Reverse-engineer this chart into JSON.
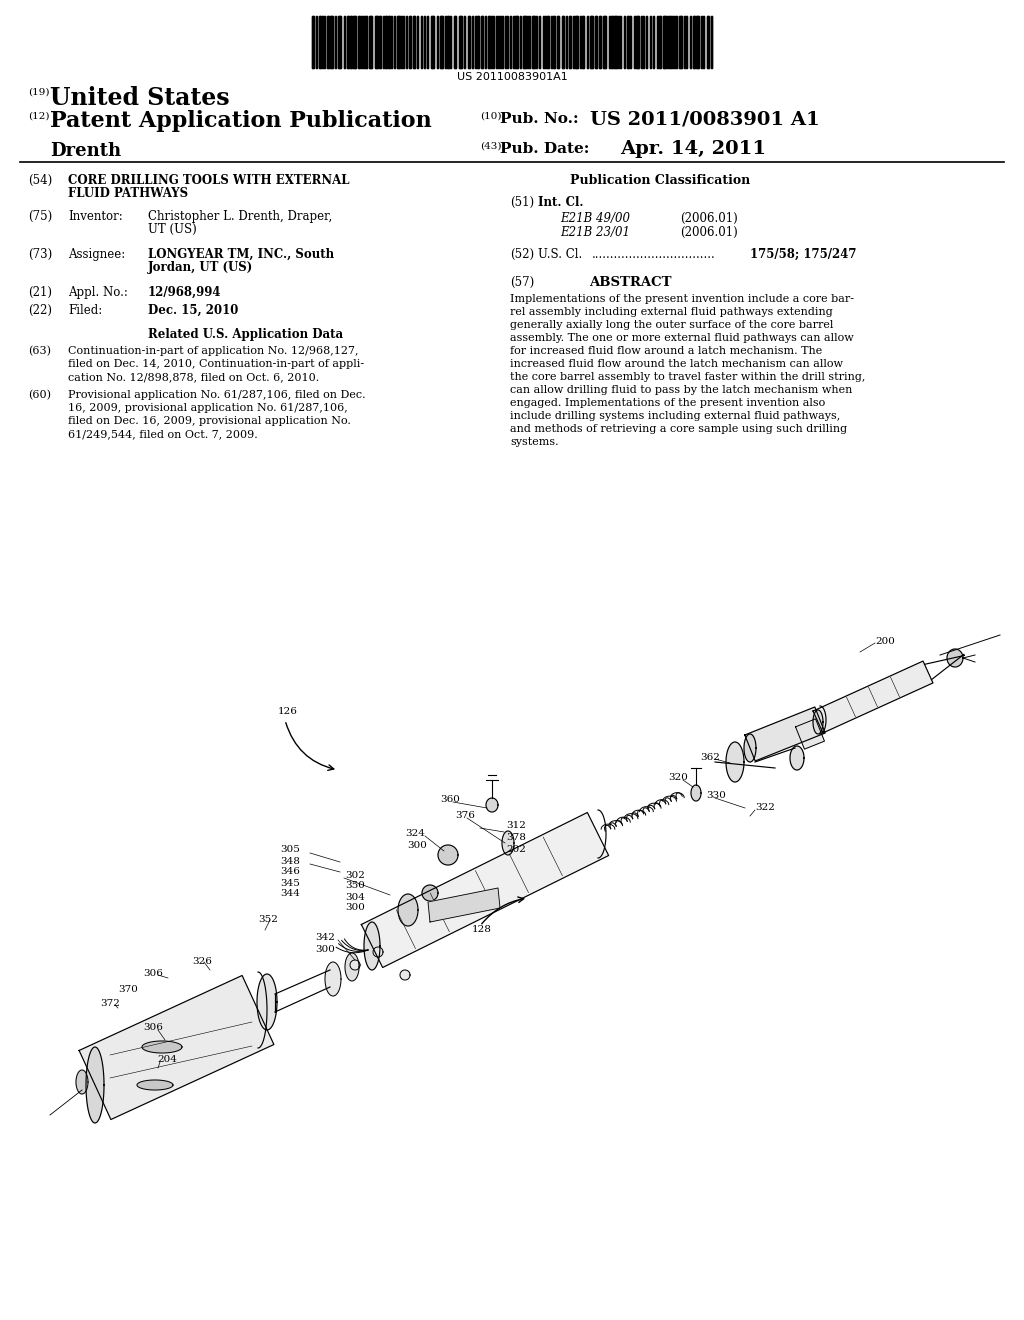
{
  "background_color": "#ffffff",
  "barcode_text": "US 20110083901A1",
  "patent_number": "US 2011/0083901 A1",
  "pub_date": "Apr. 14, 2011",
  "country": "United States",
  "label_19": "(19)",
  "label_12": "(12)",
  "pub_type": "Patent Application Publication",
  "inventor_name": "Drenth",
  "label_10": "(10)",
  "label_43": "(43)",
  "pub_no_label": "Pub. No.:",
  "pub_date_label": "Pub. Date:",
  "title_num": "(54)",
  "title_line1": "CORE DRILLING TOOLS WITH EXTERNAL",
  "title_line2": "FLUID PATHWAYS",
  "inventor_label": "(75)",
  "inventor_field": "Inventor:",
  "inventor_value_1": "Christopher L. Drenth, Draper,",
  "inventor_value_2": "UT (US)",
  "assignee_label": "(73)",
  "assignee_field": "Assignee:",
  "assignee_value_1": "LONGYEAR TM, INC., South",
  "assignee_value_2": "Jordan, UT (US)",
  "appl_label": "(21)",
  "appl_field": "Appl. No.:",
  "appl_value": "12/968,994",
  "filed_label": "(22)",
  "filed_field": "Filed:",
  "filed_value": "Dec. 15, 2010",
  "related_title": "Related U.S. Application Data",
  "related_63": "(63)",
  "related_63_lines": [
    "Continuation-in-part of application No. 12/968,127,",
    "filed on Dec. 14, 2010, Continuation-in-part of appli-",
    "cation No. 12/898,878, filed on Oct. 6, 2010."
  ],
  "related_60": "(60)",
  "related_60_lines": [
    "Provisional application No. 61/287,106, filed on Dec.",
    "16, 2009, provisional application No. 61/287,106,",
    "filed on Dec. 16, 2009, provisional application No.",
    "61/249,544, filed on Oct. 7, 2009."
  ],
  "pub_class_title": "Publication Classification",
  "intl_cl_label": "(51)",
  "intl_cl_field": "Int. Cl.",
  "intl_cl_1": "E21B 49/00",
  "intl_cl_1_date": "(2006.01)",
  "intl_cl_2": "E21B 23/01",
  "intl_cl_2_date": "(2006.01)",
  "us_cl_label": "(52)",
  "us_cl_field": "U.S. Cl.",
  "us_cl_dots": ".................................",
  "us_cl_value": "175/58; 175/247",
  "abstract_label": "(57)",
  "abstract_title": "ABSTRACT",
  "abstract_lines": [
    "Implementations of the present invention include a core bar-",
    "rel assembly including external fluid pathways extending",
    "generally axially long the outer surface of the core barrel",
    "assembly. The one or more external fluid pathways can allow",
    "for increased fluid flow around a latch mechanism. The",
    "increased fluid flow around the latch mechanism can allow",
    "the core barrel assembly to travel faster within the drill string,",
    "can allow drilling fluid to pass by the latch mechanism when",
    "engaged. Implementations of the present invention also",
    "include drilling systems including external fluid pathways,",
    "and methods of retrieving a core sample using such drilling",
    "systems."
  ]
}
